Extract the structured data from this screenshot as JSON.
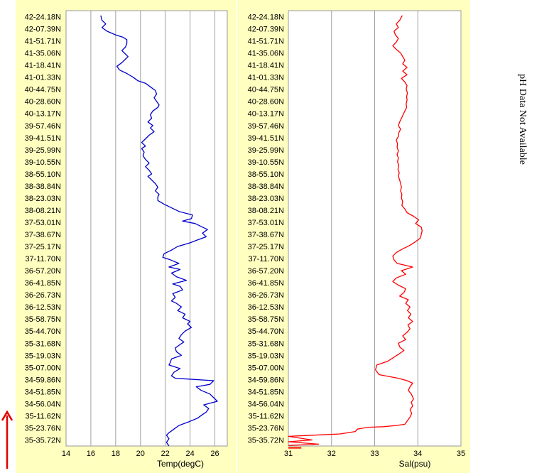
{
  "chart_data": [
    {
      "type": "line",
      "panel": "temperature",
      "xlabel": "Temp(degC)",
      "xlim": [
        14,
        27
      ],
      "xticks": [
        14,
        16,
        18,
        20,
        22,
        24,
        26
      ],
      "line_color": "#0000cc",
      "grid": true,
      "y_labels": [
        "42-24.18N",
        "42-07.39N",
        "41-51.71N",
        "41-35.06N",
        "41-18.41N",
        "41-01.33N",
        "40-44.75N",
        "40-28.60N",
        "40-13.17N",
        "39-57.46N",
        "39-41.51N",
        "39-25.99N",
        "39-10.55N",
        "38-55.10N",
        "38-38.84N",
        "38-23.03N",
        "38-08.21N",
        "37-53.01N",
        "37-38.67N",
        "37-25.17N",
        "37-11.70N",
        "36-57.20N",
        "36-41.85N",
        "36-26.73N",
        "36-12.53N",
        "35-58.75N",
        "35-44.70N",
        "35-31.68N",
        "35-19.03N",
        "35-07.00N",
        "34-59.86N",
        "34-51.85N",
        "34-56.04N",
        "35-11.62N",
        "35-23.76N",
        "35-35.72N"
      ],
      "series": [
        {
          "values": [
            [
              16.8,
              35.6
            ],
            [
              16.9,
              35.2
            ],
            [
              17.2,
              34.9
            ],
            [
              16.9,
              34.6
            ],
            [
              17.3,
              34.3
            ],
            [
              18.0,
              34.0
            ],
            [
              18.6,
              33.8
            ],
            [
              18.9,
              33.6
            ],
            [
              18.9,
              33.3
            ],
            [
              18.8,
              33.0
            ],
            [
              18.5,
              32.7
            ],
            [
              18.7,
              32.5
            ],
            [
              19.0,
              32.2
            ],
            [
              18.8,
              32.0
            ],
            [
              18.5,
              31.7
            ],
            [
              18.1,
              31.4
            ],
            [
              18.3,
              31.1
            ],
            [
              18.9,
              30.8
            ],
            [
              19.4,
              30.5
            ],
            [
              19.8,
              30.2
            ],
            [
              20.4,
              30.0
            ],
            [
              20.8,
              29.7
            ],
            [
              21.2,
              29.4
            ],
            [
              21.3,
              29.1
            ],
            [
              21.1,
              28.8
            ],
            [
              21.3,
              28.5
            ],
            [
              21.5,
              28.2
            ],
            [
              21.4,
              28.0
            ],
            [
              21.0,
              27.7
            ],
            [
              20.8,
              27.4
            ],
            [
              20.9,
              27.1
            ],
            [
              20.6,
              26.8
            ],
            [
              21.0,
              26.5
            ],
            [
              20.8,
              26.3
            ],
            [
              21.1,
              26.0
            ],
            [
              20.7,
              25.7
            ],
            [
              20.4,
              25.4
            ],
            [
              20.1,
              25.1
            ],
            [
              20.4,
              24.8
            ],
            [
              20.1,
              24.6
            ],
            [
              20.3,
              24.3
            ],
            [
              20.2,
              24.0
            ],
            [
              20.4,
              23.7
            ],
            [
              20.7,
              23.4
            ],
            [
              20.4,
              23.1
            ],
            [
              20.7,
              22.8
            ],
            [
              20.9,
              22.5
            ],
            [
              20.6,
              22.3
            ],
            [
              20.9,
              22.0
            ],
            [
              21.2,
              21.7
            ],
            [
              21.4,
              21.4
            ],
            [
              21.2,
              21.1
            ],
            [
              21.5,
              20.8
            ],
            [
              21.4,
              20.6
            ],
            [
              21.4,
              20.3
            ],
            [
              21.9,
              20.0
            ],
            [
              22.5,
              19.7
            ],
            [
              23.1,
              19.4
            ],
            [
              24.2,
              19.1
            ],
            [
              24.1,
              18.8
            ],
            [
              23.4,
              18.6
            ],
            [
              24.4,
              18.4
            ],
            [
              25.0,
              18.1
            ],
            [
              25.4,
              17.9
            ],
            [
              25.0,
              17.6
            ],
            [
              25.3,
              17.3
            ],
            [
              24.5,
              17.0
            ],
            [
              24.0,
              16.8
            ],
            [
              23.0,
              16.5
            ],
            [
              22.5,
              16.2
            ],
            [
              21.9,
              15.9
            ],
            [
              21.8,
              15.6
            ],
            [
              22.4,
              15.4
            ],
            [
              23.1,
              15.1
            ],
            [
              22.3,
              14.8
            ],
            [
              23.2,
              14.6
            ],
            [
              22.5,
              14.3
            ],
            [
              22.9,
              14.0
            ],
            [
              23.7,
              13.7
            ],
            [
              22.6,
              13.4
            ],
            [
              23.2,
              13.2
            ],
            [
              23.4,
              12.9
            ],
            [
              22.6,
              12.6
            ],
            [
              22.8,
              12.3
            ],
            [
              22.5,
              12.0
            ],
            [
              22.9,
              11.8
            ],
            [
              23.3,
              11.5
            ],
            [
              23.0,
              11.2
            ],
            [
              23.6,
              10.9
            ],
            [
              23.4,
              10.6
            ],
            [
              24.0,
              10.3
            ],
            [
              23.8,
              10.1
            ],
            [
              24.1,
              9.8
            ],
            [
              23.6,
              9.5
            ],
            [
              23.3,
              9.2
            ],
            [
              23.1,
              8.9
            ],
            [
              23.5,
              8.6
            ],
            [
              23.2,
              8.4
            ],
            [
              22.8,
              8.1
            ],
            [
              22.9,
              7.8
            ],
            [
              23.3,
              7.5
            ],
            [
              22.5,
              7.2
            ],
            [
              22.4,
              6.9
            ],
            [
              22.3,
              6.7
            ],
            [
              23.2,
              6.4
            ],
            [
              22.7,
              6.1
            ],
            [
              22.5,
              5.8
            ],
            [
              22.8,
              5.6
            ],
            [
              25.9,
              5.4
            ],
            [
              25.6,
              5.1
            ],
            [
              24.5,
              4.9
            ],
            [
              24.9,
              4.6
            ],
            [
              25.6,
              4.3
            ],
            [
              25.9,
              4.0
            ],
            [
              26.2,
              3.7
            ],
            [
              25.1,
              3.4
            ],
            [
              25.5,
              3.1
            ],
            [
              25.3,
              2.8
            ],
            [
              25.0,
              2.6
            ],
            [
              24.6,
              2.3
            ],
            [
              23.9,
              2.0
            ],
            [
              23.1,
              1.7
            ],
            [
              22.7,
              1.4
            ],
            [
              22.3,
              1.1
            ],
            [
              22.1,
              0.9
            ],
            [
              22.3,
              0.6
            ],
            [
              22.1,
              0.3
            ],
            [
              22.3,
              0.0
            ]
          ]
        }
      ]
    },
    {
      "type": "line",
      "panel": "salinity",
      "xlabel": "Sal(psu)",
      "xlim": [
        31,
        35
      ],
      "xticks": [
        31,
        32,
        33,
        34,
        35
      ],
      "line_color": "#ff0000",
      "grid": true,
      "y_labels": [
        "42-24.18N",
        "42-07.39N",
        "41-51.71N",
        "41-35.06N",
        "41-18.41N",
        "41-01.33N",
        "40-44.75N",
        "40-28.60N",
        "40-13.17N",
        "39-57.46N",
        "39-41.51N",
        "39-25.99N",
        "39-10.55N",
        "38-55.10N",
        "38-38.84N",
        "38-23.03N",
        "38-08.21N",
        "37-53.01N",
        "37-38.67N",
        "37-25.17N",
        "37-11.70N",
        "36-57.20N",
        "36-41.85N",
        "36-26.73N",
        "36-12.53N",
        "35-58.75N",
        "35-44.70N",
        "35-31.68N",
        "35-19.03N",
        "35-07.00N",
        "34-59.86N",
        "34-51.85N",
        "34-56.04N",
        "35-11.62N",
        "35-23.76N",
        "35-35.72N"
      ],
      "series": [
        {
          "values": [
            [
              33.64,
              35.6
            ],
            [
              33.58,
              35.2
            ],
            [
              33.5,
              34.9
            ],
            [
              33.55,
              34.6
            ],
            [
              33.45,
              34.3
            ],
            [
              33.48,
              34.0
            ],
            [
              33.55,
              33.7
            ],
            [
              33.5,
              33.4
            ],
            [
              33.42,
              33.1
            ],
            [
              33.5,
              32.8
            ],
            [
              33.6,
              32.5
            ],
            [
              33.65,
              32.2
            ],
            [
              33.7,
              31.9
            ],
            [
              33.65,
              31.6
            ],
            [
              33.75,
              31.3
            ],
            [
              33.65,
              31.0
            ],
            [
              33.75,
              30.7
            ],
            [
              33.62,
              30.4
            ],
            [
              33.7,
              30.1
            ],
            [
              33.75,
              29.8
            ],
            [
              33.73,
              29.5
            ],
            [
              33.76,
              29.2
            ],
            [
              33.74,
              28.9
            ],
            [
              33.75,
              28.6
            ],
            [
              33.73,
              28.3
            ],
            [
              33.74,
              28.0
            ],
            [
              33.7,
              27.7
            ],
            [
              33.66,
              27.4
            ],
            [
              33.62,
              27.1
            ],
            [
              33.58,
              26.8
            ],
            [
              33.55,
              26.5
            ],
            [
              33.6,
              26.2
            ],
            [
              33.56,
              25.9
            ],
            [
              33.55,
              25.6
            ],
            [
              33.5,
              25.3
            ],
            [
              33.53,
              25.0
            ],
            [
              33.52,
              24.7
            ],
            [
              33.55,
              24.4
            ],
            [
              33.52,
              24.1
            ],
            [
              33.55,
              23.8
            ],
            [
              33.53,
              23.5
            ],
            [
              33.56,
              23.2
            ],
            [
              33.54,
              22.9
            ],
            [
              33.57,
              22.6
            ],
            [
              33.55,
              22.3
            ],
            [
              33.58,
              22.0
            ],
            [
              33.6,
              21.7
            ],
            [
              33.62,
              21.4
            ],
            [
              33.6,
              21.1
            ],
            [
              33.63,
              20.8
            ],
            [
              33.62,
              20.5
            ],
            [
              33.65,
              20.2
            ],
            [
              33.63,
              19.9
            ],
            [
              33.7,
              19.6
            ],
            [
              33.75,
              19.3
            ],
            [
              33.9,
              19.0
            ],
            [
              34.02,
              18.7
            ],
            [
              33.95,
              18.4
            ],
            [
              34.08,
              18.1
            ],
            [
              34.1,
              17.8
            ],
            [
              34.08,
              17.5
            ],
            [
              34.06,
              17.2
            ],
            [
              33.95,
              16.9
            ],
            [
              33.82,
              16.6
            ],
            [
              33.65,
              16.3
            ],
            [
              33.5,
              16.0
            ],
            [
              33.42,
              15.7
            ],
            [
              33.45,
              15.4
            ],
            [
              33.52,
              15.1
            ],
            [
              33.88,
              14.8
            ],
            [
              33.62,
              14.5
            ],
            [
              33.72,
              14.2
            ],
            [
              33.5,
              13.9
            ],
            [
              33.42,
              13.6
            ],
            [
              33.55,
              13.3
            ],
            [
              33.72,
              13.0
            ],
            [
              33.68,
              12.7
            ],
            [
              33.58,
              12.4
            ],
            [
              33.78,
              12.1
            ],
            [
              33.72,
              11.8
            ],
            [
              33.82,
              11.5
            ],
            [
              33.76,
              11.2
            ],
            [
              33.84,
              10.9
            ],
            [
              33.78,
              10.6
            ],
            [
              33.88,
              10.3
            ],
            [
              33.77,
              10.0
            ],
            [
              33.82,
              9.7
            ],
            [
              33.75,
              9.4
            ],
            [
              33.65,
              9.1
            ],
            [
              33.72,
              8.8
            ],
            [
              33.55,
              8.5
            ],
            [
              33.58,
              8.2
            ],
            [
              33.68,
              7.9
            ],
            [
              33.56,
              7.6
            ],
            [
              33.43,
              7.3
            ],
            [
              33.3,
              7.0
            ],
            [
              33.05,
              6.7
            ],
            [
              33.02,
              6.3
            ],
            [
              33.1,
              5.9
            ],
            [
              33.55,
              5.6
            ],
            [
              33.75,
              5.4
            ],
            [
              33.88,
              5.2
            ],
            [
              33.82,
              4.9
            ],
            [
              33.78,
              4.6
            ],
            [
              33.85,
              4.3
            ],
            [
              33.9,
              3.9
            ],
            [
              33.85,
              3.6
            ],
            [
              33.88,
              3.3
            ],
            [
              33.82,
              3.0
            ],
            [
              33.86,
              2.7
            ],
            [
              33.82,
              2.4
            ],
            [
              33.76,
              2.1
            ],
            [
              33.7,
              1.8
            ],
            [
              33.5,
              1.7
            ],
            [
              33.2,
              1.6
            ],
            [
              32.85,
              1.55
            ],
            [
              32.6,
              1.4
            ],
            [
              32.55,
              1.2
            ],
            [
              32.2,
              1.0
            ],
            [
              31.6,
              0.9
            ],
            [
              31.0,
              0.8
            ],
            [
              31.55,
              0.5
            ],
            [
              31.0,
              0.35
            ],
            [
              31.7,
              0.15
            ],
            [
              31.0,
              0.05
            ]
          ]
        },
        {
          "values": [
            [
              31.0,
              -0.15
            ],
            [
              31.3,
              -0.15
            ]
          ]
        }
      ]
    }
  ],
  "annotation": "pH Data Not Available"
}
